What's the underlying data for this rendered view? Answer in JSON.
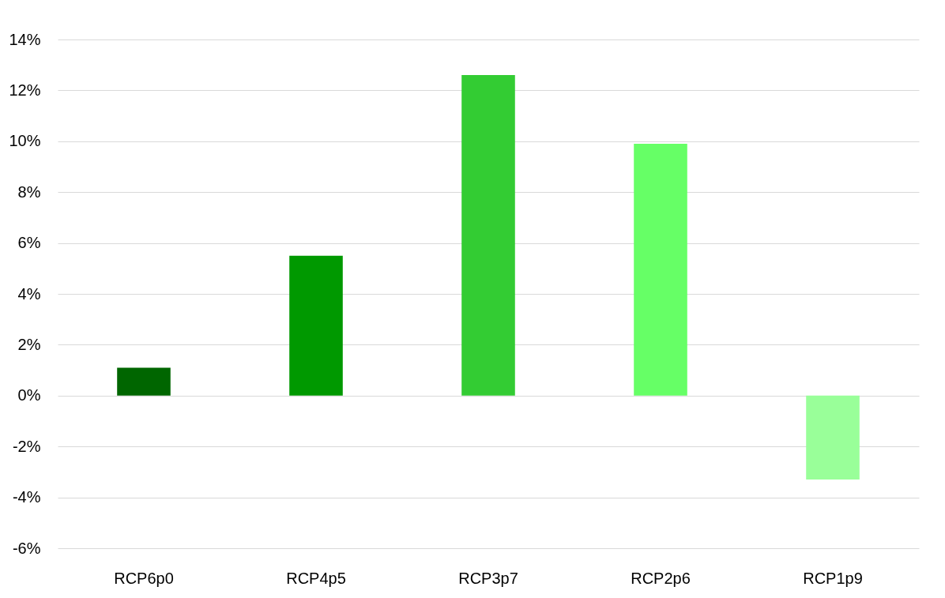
{
  "chart_data": {
    "type": "bar",
    "categories": [
      "RCP6p0",
      "RCP4p5",
      "RCP3p7",
      "RCP2p6",
      "RCP1p9"
    ],
    "values": [
      1.1,
      5.5,
      12.6,
      9.9,
      -3.3
    ],
    "colors": [
      "#006600",
      "#009900",
      "#33cc33",
      "#66ff66",
      "#99ff99"
    ],
    "ylim": [
      -6,
      14
    ],
    "yticks": [
      {
        "value": -6,
        "label": "-6%"
      },
      {
        "value": -4,
        "label": "-4%"
      },
      {
        "value": -2,
        "label": "-2%"
      },
      {
        "value": 0,
        "label": "0%"
      },
      {
        "value": 2,
        "label": "2%"
      },
      {
        "value": 4,
        "label": "4%"
      },
      {
        "value": 6,
        "label": "6%"
      },
      {
        "value": 8,
        "label": "8%"
      },
      {
        "value": 10,
        "label": "10%"
      },
      {
        "value": 12,
        "label": "12%"
      },
      {
        "value": 14,
        "label": "14%"
      }
    ],
    "grid": "y"
  }
}
